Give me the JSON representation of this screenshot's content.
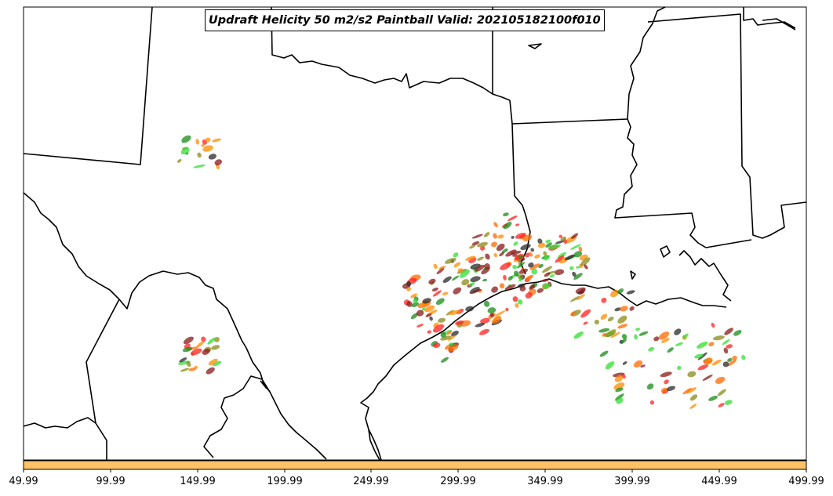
{
  "title": "Updraft Helicity 50 m2/s2 Paintball Valid: 202105182100f010",
  "colorbar": {
    "color": "#ffc266",
    "ticks": [
      "49.99",
      "99.99",
      "149.99",
      "199.99",
      "249.99",
      "299.99",
      "349.99",
      "399.99",
      "449.99",
      "499.99"
    ]
  },
  "colors": {
    "boundary": "#000000",
    "paintball_palette": [
      "#ff2020",
      "#8b1a1a",
      "#33dd33",
      "#8b8b1a",
      "#ff8c00",
      "#2a2a2a",
      "#ff6a00",
      "#1b8b1b"
    ]
  }
}
